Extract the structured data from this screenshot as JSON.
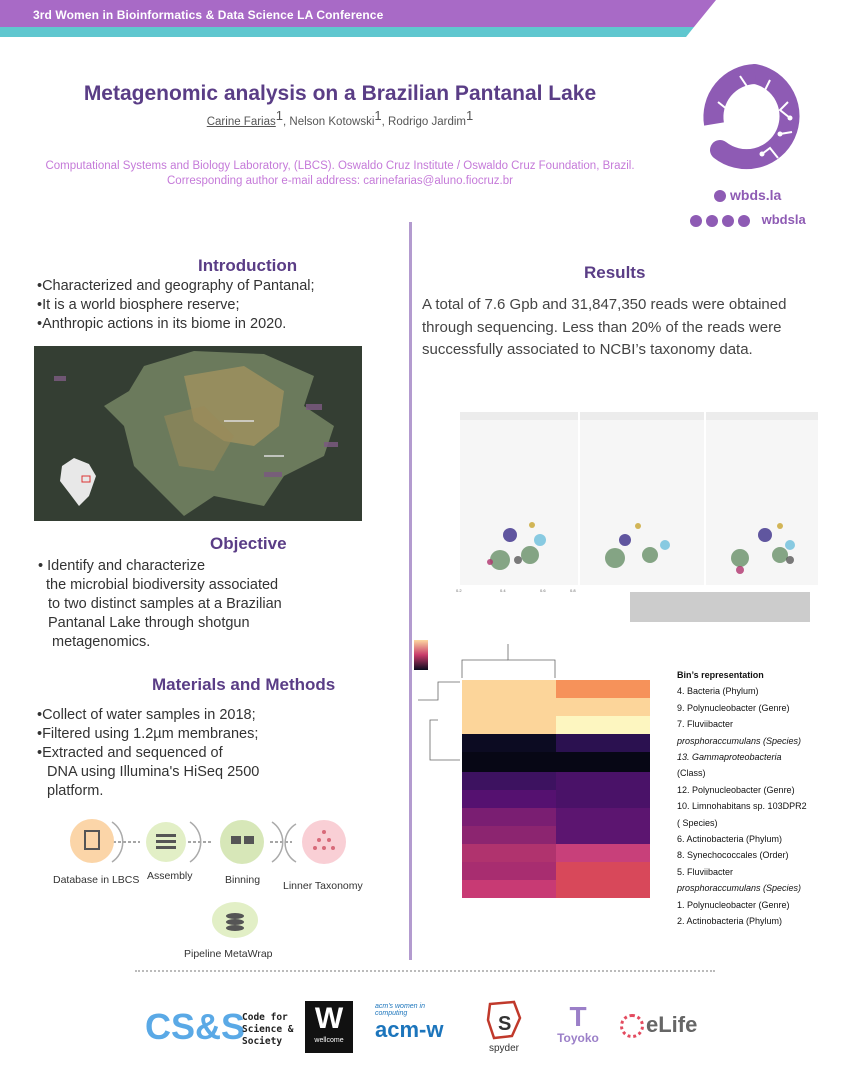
{
  "banner": {
    "text": "3rd Women in Bioinformatics & Data Science LA Conference",
    "color_primary": "#a86ac6",
    "color_accent": "#5fc7cf"
  },
  "title": "Metagenomic analysis on a Brazilian Pantanal Lake",
  "authors": [
    {
      "name": "Carine Farias",
      "sup": "1"
    },
    {
      "name": "Nelson Kotowski",
      "sup": "1"
    },
    {
      "name": "Rodrigo Jardim",
      "sup": "1"
    }
  ],
  "affiliation": {
    "line1": "Computational Systems and Biology Laboratory, (LBCS). Oswaldo Cruz  Institute / Oswaldo Cruz Foundation, Brazil.",
    "line2": "Corresponding author e-mail address: carinefarias@aluno.fiocruz.br"
  },
  "logo": {
    "url": "wbds.la",
    "handle": "wbdsla",
    "icons": [
      "globe-icon",
      "twitter-icon",
      "facebook-icon",
      "telegram-icon",
      "instagram-icon"
    ]
  },
  "introduction": {
    "heading": "Introduction",
    "items": [
      "•Characterized and geography of Pantanal;",
      "•It is a world biosphere reserve;",
      "•Anthropic actions in its biome in 2020."
    ]
  },
  "objective": {
    "heading": "Objective",
    "lines": [
      "• Identify and characterize",
      "the microbial biodiversity associated",
      "to two distinct samples at a Brazilian",
      "Pantanal Lake through shotgun",
      "metagenomics."
    ]
  },
  "methods": {
    "heading": "Materials and Methods",
    "items": [
      "•Collect of water samples in 2018;",
      "•Filtered using 1.2µm membranes;",
      "•Extracted and sequenced of",
      "DNA using Illumina's HiSeq 2500",
      "platform."
    ],
    "pipeline": [
      "Database in LBCS",
      "Assembly",
      "Binning",
      "Linner Taxonomy",
      "Pipeline MetaWrap"
    ]
  },
  "results": {
    "heading": "Results",
    "text": "A total of 7.6 Gpb and 31,847,350 reads were obtained through sequencing. Less than 20% of the reads were successfully associated to NCBI’s taxonomy data."
  },
  "bins": {
    "heading": "Bin’s representation",
    "items": [
      "4. Bacteria (Phylum)",
      "9. Polynucleobacter (Genre)",
      "7. Fluviibacter",
      "prosphoraccumulans (Species)",
      "13. Gammaproteobacteria",
      "(Class)",
      "12. Polynucleobacter (Genre)",
      "10. Limnohabitans sp. 103DPR2",
      "( Species)",
      "6. Actinobacteria (Phylum)",
      "8. Synechococcales (Order)",
      "5. Fluviibacter",
      "prosphoraccumulans (Species)",
      "1. Polynucleobacter (Genre)",
      "2. Actinobacteria (Phylum)"
    ]
  },
  "footer": {
    "logos": [
      "CS&S",
      "Code for Science & Society",
      "wellcome",
      "acm's women in computing",
      "acm-w",
      "spyder",
      "Toyoko",
      "eLife"
    ]
  }
}
